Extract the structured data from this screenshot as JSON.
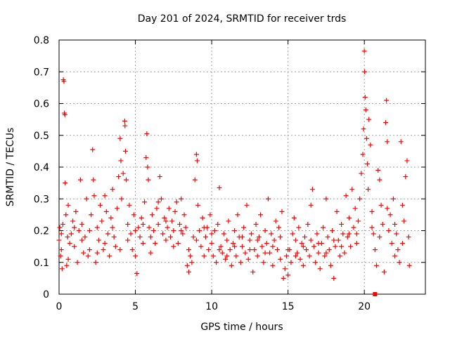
{
  "chart_data": {
    "type": "scatter",
    "title": "Day 201 of 2024, SRMTID for receiver trds",
    "xlabel": "GPS time / hours",
    "ylabel": "SRMTID / TECUs",
    "xlim": [
      0,
      24
    ],
    "ylim": [
      0,
      0.8
    ],
    "x_ticks": [
      0,
      5,
      10,
      15,
      20
    ],
    "y_ticks": [
      0,
      0.1,
      0.2,
      0.3,
      0.4,
      0.5,
      0.6,
      0.7,
      0.8
    ],
    "grid": true,
    "marker": "+",
    "color": "#ff0000",
    "series": [
      {
        "name": "trds",
        "points": [
          [
            0.0,
            0.17
          ],
          [
            0.05,
            0.21
          ],
          [
            0.1,
            0.12
          ],
          [
            0.15,
            0.19
          ],
          [
            0.2,
            0.08
          ],
          [
            0.25,
            0.22
          ],
          [
            0.28,
            0.675
          ],
          [
            0.32,
            0.67
          ],
          [
            0.35,
            0.57
          ],
          [
            0.38,
            0.565
          ],
          [
            0.4,
            0.35
          ],
          [
            0.45,
            0.25
          ],
          [
            0.5,
            0.09
          ],
          [
            0.55,
            0.18
          ],
          [
            0.6,
            0.28
          ],
          [
            0.7,
            0.16
          ],
          [
            0.8,
            0.19
          ],
          [
            0.9,
            0.23
          ],
          [
            1.0,
            0.15
          ],
          [
            1.1,
            0.26
          ],
          [
            1.2,
            0.1
          ],
          [
            1.3,
            0.2
          ],
          [
            1.4,
            0.36
          ],
          [
            1.5,
            0.22
          ],
          [
            1.6,
            0.13
          ],
          [
            1.7,
            0.18
          ],
          [
            1.8,
            0.3
          ],
          [
            1.9,
            0.12
          ],
          [
            2.0,
            0.2
          ],
          [
            2.1,
            0.25
          ],
          [
            2.2,
            0.455
          ],
          [
            2.25,
            0.36
          ],
          [
            2.3,
            0.31
          ],
          [
            2.4,
            0.1
          ],
          [
            2.5,
            0.21
          ],
          [
            2.6,
            0.17
          ],
          [
            2.7,
            0.28
          ],
          [
            2.8,
            0.23
          ],
          [
            2.9,
            0.14
          ],
          [
            3.0,
            0.31
          ],
          [
            3.1,
            0.26
          ],
          [
            3.2,
            0.19
          ],
          [
            3.3,
            0.12
          ],
          [
            3.4,
            0.24
          ],
          [
            3.5,
            0.33
          ],
          [
            3.6,
            0.18
          ],
          [
            3.7,
            0.15
          ],
          [
            3.8,
            0.27
          ],
          [
            3.9,
            0.37
          ],
          [
            4.0,
            0.49
          ],
          [
            4.05,
            0.42
          ],
          [
            4.1,
            0.3
          ],
          [
            4.2,
            0.38
          ],
          [
            4.3,
            0.545
          ],
          [
            4.32,
            0.53
          ],
          [
            4.35,
            0.45
          ],
          [
            4.4,
            0.36
          ],
          [
            4.5,
            0.22
          ],
          [
            4.6,
            0.28
          ],
          [
            4.7,
            0.19
          ],
          [
            4.8,
            0.14
          ],
          [
            4.9,
            0.25
          ],
          [
            5.0,
            0.12
          ],
          [
            5.1,
            0.065
          ],
          [
            5.2,
            0.21
          ],
          [
            5.3,
            0.18
          ],
          [
            5.4,
            0.24
          ],
          [
            5.5,
            0.16
          ],
          [
            5.6,
            0.29
          ],
          [
            5.7,
            0.43
          ],
          [
            5.75,
            0.505
          ],
          [
            5.8,
            0.4
          ],
          [
            5.85,
            0.36
          ],
          [
            5.9,
            0.21
          ],
          [
            6.0,
            0.18
          ],
          [
            6.1,
            0.25
          ],
          [
            6.2,
            0.2
          ],
          [
            6.3,
            0.16
          ],
          [
            6.4,
            0.27
          ],
          [
            6.5,
            0.22
          ],
          [
            6.6,
            0.37
          ],
          [
            6.7,
            0.3
          ],
          [
            6.8,
            0.19
          ],
          [
            6.9,
            0.24
          ],
          [
            7.0,
            0.17
          ],
          [
            7.1,
            0.21
          ],
          [
            7.2,
            0.27
          ],
          [
            7.3,
            0.18
          ],
          [
            7.4,
            0.23
          ],
          [
            7.5,
            0.2
          ],
          [
            7.6,
            0.26
          ],
          [
            7.7,
            0.29
          ],
          [
            7.8,
            0.16
          ],
          [
            7.9,
            0.22
          ],
          [
            8.0,
            0.3
          ],
          [
            8.1,
            0.19
          ],
          [
            8.2,
            0.25
          ],
          [
            8.3,
            0.21
          ],
          [
            8.4,
            0.09
          ],
          [
            8.5,
            0.07
          ],
          [
            8.6,
            0.12
          ],
          [
            8.7,
            0.1
          ],
          [
            8.8,
            0.18
          ],
          [
            8.9,
            0.36
          ],
          [
            9.0,
            0.44
          ],
          [
            9.05,
            0.42
          ],
          [
            9.1,
            0.28
          ],
          [
            9.2,
            0.2
          ],
          [
            9.3,
            0.15
          ],
          [
            9.4,
            0.24
          ],
          [
            9.5,
            0.12
          ],
          [
            9.6,
            0.18
          ],
          [
            9.7,
            0.21
          ],
          [
            9.8,
            0.14
          ],
          [
            9.9,
            0.25
          ],
          [
            10.0,
            0.16
          ],
          [
            10.1,
            0.12
          ],
          [
            10.2,
            0.2
          ],
          [
            10.3,
            0.1
          ],
          [
            10.4,
            0.22
          ],
          [
            10.5,
            0.335
          ],
          [
            10.6,
            0.15
          ],
          [
            10.7,
            0.13
          ],
          [
            10.8,
            0.19
          ],
          [
            10.9,
            0.11
          ],
          [
            11.0,
            0.17
          ],
          [
            11.1,
            0.23
          ],
          [
            11.2,
            0.14
          ],
          [
            11.3,
            0.09
          ],
          [
            11.4,
            0.16
          ],
          [
            11.5,
            0.2
          ],
          [
            11.6,
            0.12
          ],
          [
            11.7,
            0.25
          ],
          [
            11.8,
            0.18
          ],
          [
            11.9,
            0.1
          ],
          [
            12.0,
            0.15
          ],
          [
            12.1,
            0.21
          ],
          [
            12.2,
            0.13
          ],
          [
            12.3,
            0.28
          ],
          [
            12.4,
            0.11
          ],
          [
            12.5,
            0.17
          ],
          [
            12.6,
            0.19
          ],
          [
            12.7,
            0.07
          ],
          [
            12.8,
            0.14
          ],
          [
            12.9,
            0.22
          ],
          [
            13.0,
            0.12
          ],
          [
            13.1,
            0.18
          ],
          [
            13.2,
            0.25
          ],
          [
            13.3,
            0.15
          ],
          [
            13.4,
            0.1
          ],
          [
            13.5,
            0.2
          ],
          [
            13.6,
            0.16
          ],
          [
            13.7,
            0.3
          ],
          [
            13.8,
            0.13
          ],
          [
            13.9,
            0.19
          ],
          [
            14.0,
            0.09
          ],
          [
            14.1,
            0.17
          ],
          [
            14.2,
            0.23
          ],
          [
            14.3,
            0.14
          ],
          [
            14.4,
            0.21
          ],
          [
            14.5,
            0.11
          ],
          [
            14.6,
            0.26
          ],
          [
            14.7,
            0.05
          ],
          [
            14.8,
            0.08
          ],
          [
            14.9,
            0.12
          ],
          [
            15.0,
            0.06
          ],
          [
            15.1,
            0.14
          ],
          [
            15.2,
            0.1
          ],
          [
            15.3,
            0.19
          ],
          [
            15.4,
            0.24
          ],
          [
            15.5,
            0.17
          ],
          [
            15.6,
            0.13
          ],
          [
            15.7,
            0.21
          ],
          [
            15.8,
            0.11
          ],
          [
            15.9,
            0.16
          ],
          [
            16.0,
            0.09
          ],
          [
            16.1,
            0.18
          ],
          [
            16.2,
            0.14
          ],
          [
            16.3,
            0.22
          ],
          [
            16.4,
            0.12
          ],
          [
            16.5,
            0.28
          ],
          [
            16.6,
            0.33
          ],
          [
            16.7,
            0.15
          ],
          [
            16.8,
            0.1
          ],
          [
            16.9,
            0.19
          ],
          [
            17.0,
            0.13
          ],
          [
            17.1,
            0.08
          ],
          [
            17.2,
            0.16
          ],
          [
            17.3,
            0.21
          ],
          [
            17.4,
            0.12
          ],
          [
            17.5,
            0.3
          ],
          [
            17.6,
            0.18
          ],
          [
            17.7,
            0.14
          ],
          [
            17.8,
            0.09
          ],
          [
            17.9,
            0.2
          ],
          [
            18.0,
            0.05
          ],
          [
            18.1,
            0.15
          ],
          [
            18.2,
            0.26
          ],
          [
            18.3,
            0.17
          ],
          [
            18.4,
            0.12
          ],
          [
            18.5,
            0.22
          ],
          [
            18.6,
            0.19
          ],
          [
            18.7,
            0.13
          ],
          [
            18.8,
            0.31
          ],
          [
            18.9,
            0.18
          ],
          [
            19.0,
            0.24
          ],
          [
            19.1,
            0.15
          ],
          [
            19.2,
            0.33
          ],
          [
            19.3,
            0.21
          ],
          [
            19.4,
            0.27
          ],
          [
            19.5,
            0.19
          ],
          [
            19.6,
            0.23
          ],
          [
            19.7,
            0.3
          ],
          [
            19.8,
            0.38
          ],
          [
            19.9,
            0.44
          ],
          [
            19.95,
            0.52
          ],
          [
            20.0,
            0.765
          ],
          [
            20.02,
            0.7
          ],
          [
            20.05,
            0.62
          ],
          [
            20.1,
            0.58
          ],
          [
            20.15,
            0.49
          ],
          [
            20.2,
            0.41
          ],
          [
            20.25,
            0.33
          ],
          [
            20.3,
            0.55
          ],
          [
            20.4,
            0.47
          ],
          [
            20.5,
            0.26
          ],
          [
            20.6,
            0.19
          ],
          [
            20.7,
            0.14
          ],
          [
            20.8,
            0.09
          ],
          [
            20.9,
            0.39
          ],
          [
            21.0,
            0.36
          ],
          [
            21.1,
            0.28
          ],
          [
            21.2,
            0.22
          ],
          [
            21.3,
            0.07
          ],
          [
            21.4,
            0.54
          ],
          [
            21.45,
            0.61
          ],
          [
            21.5,
            0.48
          ],
          [
            21.6,
            0.2
          ],
          [
            21.7,
            0.25
          ],
          [
            21.8,
            0.16
          ],
          [
            21.9,
            0.3
          ],
          [
            22.0,
            0.12
          ],
          [
            22.1,
            0.19
          ],
          [
            22.2,
            0.14
          ],
          [
            22.3,
            0.1
          ],
          [
            22.4,
            0.48
          ],
          [
            22.5,
            0.28
          ],
          [
            22.6,
            0.23
          ],
          [
            22.7,
            0.37
          ],
          [
            22.8,
            0.42
          ],
          [
            22.9,
            0.18
          ],
          [
            22.95,
            0.09
          ],
          [
            0.15,
            0.14
          ],
          [
            0.6,
            0.11
          ],
          [
            1.0,
            0.21
          ],
          [
            1.5,
            0.17
          ],
          [
            2.0,
            0.14
          ],
          [
            2.5,
            0.13
          ],
          [
            3.0,
            0.16
          ],
          [
            3.5,
            0.21
          ],
          [
            4.0,
            0.14
          ],
          [
            4.5,
            0.17
          ],
          [
            5.0,
            0.2
          ],
          [
            5.5,
            0.22
          ],
          [
            6.0,
            0.13
          ],
          [
            6.5,
            0.29
          ],
          [
            7.0,
            0.23
          ],
          [
            7.5,
            0.15
          ],
          [
            8.0,
            0.2
          ],
          [
            8.5,
            0.14
          ],
          [
            9.0,
            0.17
          ],
          [
            9.5,
            0.21
          ],
          [
            10.0,
            0.19
          ],
          [
            10.5,
            0.14
          ],
          [
            11.0,
            0.12
          ],
          [
            11.5,
            0.15
          ],
          [
            12.0,
            0.18
          ],
          [
            12.5,
            0.14
          ],
          [
            13.0,
            0.17
          ],
          [
            13.5,
            0.13
          ],
          [
            14.0,
            0.15
          ],
          [
            14.5,
            0.18
          ],
          [
            15.0,
            0.14
          ],
          [
            15.5,
            0.12
          ],
          [
            16.0,
            0.15
          ],
          [
            16.5,
            0.17
          ],
          [
            17.0,
            0.16
          ],
          [
            17.5,
            0.13
          ],
          [
            18.0,
            0.17
          ],
          [
            18.5,
            0.15
          ],
          [
            19.0,
            0.19
          ],
          [
            19.5,
            0.16
          ],
          [
            20.5,
            0.21
          ],
          [
            21.0,
            0.18
          ],
          [
            21.5,
            0.27
          ],
          [
            22.0,
            0.22
          ],
          [
            22.5,
            0.16
          ]
        ]
      }
    ],
    "annotations": [
      {
        "type": "square-marker",
        "x": 20.7,
        "y": 0.0
      }
    ]
  }
}
